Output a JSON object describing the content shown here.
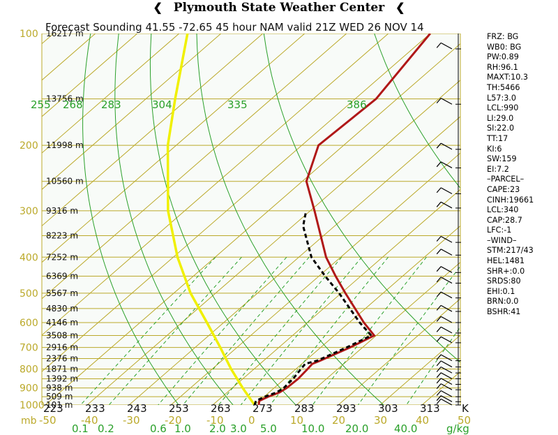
{
  "header": {
    "title": "Plymouth State Weather Center",
    "flag_icon": "flag-icon"
  },
  "chart_data": {
    "type": "skew-t sounding",
    "title": "Forecast Sounding 41.55 -72.65  45 hour NAM valid 21Z WED 26 NOV 14",
    "pressure_labels": [
      "100",
      "200",
      "300",
      "400",
      "500",
      "600",
      "700",
      "800",
      "900",
      "1000"
    ],
    "pressure_unit": "mb",
    "height_labels": [
      {
        "p": 100,
        "label": "16217 m"
      },
      {
        "p": 150,
        "label": "13756 m"
      },
      {
        "p": 200,
        "label": "11998 m"
      },
      {
        "p": 250,
        "label": "10560 m"
      },
      {
        "p": 300,
        "label": "9316 m"
      },
      {
        "p": 350,
        "label": "8223 m"
      },
      {
        "p": 400,
        "label": "7252 m"
      },
      {
        "p": 450,
        "label": "6369 m"
      },
      {
        "p": 500,
        "label": "5567 m"
      },
      {
        "p": 550,
        "label": "4830 m"
      },
      {
        "p": 600,
        "label": "4146 m"
      },
      {
        "p": 650,
        "label": "3508 m"
      },
      {
        "p": 700,
        "label": "2916 m"
      },
      {
        "p": 750,
        "label": "2376 m"
      },
      {
        "p": 800,
        "label": "1871 m"
      },
      {
        "p": 850,
        "label": "1392 m"
      },
      {
        "p": 900,
        "label": "938 m"
      },
      {
        "p": 950,
        "label": "509 m"
      },
      {
        "p": 1000,
        "label": "101 m"
      }
    ],
    "temp_c_labels": [
      "-50",
      "-40",
      "-30",
      "-20",
      "-10",
      "0",
      "10",
      "20",
      "30",
      "40",
      "50"
    ],
    "kelvin_labels": [
      "223",
      "233",
      "243",
      "253",
      "263",
      "273",
      "283",
      "293",
      "303",
      "313",
      "K"
    ],
    "mixing_ratio_labels": [
      "0.1",
      "0.2",
      "0.6",
      "1.0",
      "2.0",
      "3.0",
      "5.0",
      "10.0",
      "20.0",
      "40.0",
      "g/kg"
    ],
    "theta_labels": [
      "255",
      "268",
      "283",
      "304",
      "335",
      "386"
    ],
    "temperature_profile": [
      {
        "p": 1000,
        "t": 1.0
      },
      {
        "p": 975,
        "t": 0.0
      },
      {
        "p": 950,
        "t": 1.0
      },
      {
        "p": 925,
        "t": 2.5
      },
      {
        "p": 900,
        "t": 3.0
      },
      {
        "p": 850,
        "t": 3.2
      },
      {
        "p": 800,
        "t": 2.8
      },
      {
        "p": 775,
        "t": 2.5
      },
      {
        "p": 760,
        "t": 3.5
      },
      {
        "p": 700,
        "t": 7.0
      },
      {
        "p": 650,
        "t": 9.5
      },
      {
        "p": 600,
        "t": 3.5
      },
      {
        "p": 500,
        "t": -9.0
      },
      {
        "p": 450,
        "t": -16.0
      },
      {
        "p": 400,
        "t": -23.5
      },
      {
        "p": 300,
        "t": -39.0
      },
      {
        "p": 250,
        "t": -49.0
      },
      {
        "p": 200,
        "t": -56.0
      },
      {
        "p": 150,
        "t": -55.0
      },
      {
        "p": 100,
        "t": -60.0
      }
    ],
    "dewpoint_profile": [
      {
        "p": 1000,
        "t": 0.0
      },
      {
        "p": 975,
        "t": -0.8
      },
      {
        "p": 950,
        "t": 0.2
      },
      {
        "p": 925,
        "t": 1.8
      },
      {
        "p": 900,
        "t": 2.3
      },
      {
        "p": 850,
        "t": 2.0
      },
      {
        "p": 800,
        "t": 1.2
      },
      {
        "p": 775,
        "t": 0.8
      },
      {
        "p": 760,
        "t": 2.8
      },
      {
        "p": 700,
        "t": 6.2
      },
      {
        "p": 650,
        "t": 8.8
      },
      {
        "p": 600,
        "t": 2.5
      },
      {
        "p": 500,
        "t": -10.5
      },
      {
        "p": 450,
        "t": -18.5
      },
      {
        "p": 400,
        "t": -27.0
      },
      {
        "p": 330,
        "t": -37.5
      },
      {
        "p": 300,
        "t": -41.0
      }
    ],
    "parcel_profile": [
      {
        "p": 1000,
        "t": 0.0
      },
      {
        "p": 900,
        "t": -7.5
      },
      {
        "p": 800,
        "t": -15.5
      },
      {
        "p": 700,
        "t": -24.0
      },
      {
        "p": 600,
        "t": -34.0
      },
      {
        "p": 500,
        "t": -46.0
      },
      {
        "p": 400,
        "t": -59.0
      },
      {
        "p": 300,
        "t": -74.0
      },
      {
        "p": 200,
        "t": -92.0
      },
      {
        "p": 150,
        "t": -103.0
      },
      {
        "p": 100,
        "t": -118.0
      }
    ],
    "wind_barbs_p": [
      110,
      155,
      205,
      230,
      270,
      295,
      365,
      395,
      440,
      470,
      515,
      560,
      600,
      640,
      680,
      760,
      790,
      820,
      850,
      880,
      910,
      950,
      980,
      1000
    ],
    "grid": true,
    "colors": {
      "isobar": "#bba92a",
      "isotherm": "#bba92a",
      "dry_adiabat": "#2aa02a",
      "mixing_ratio": "#2aa02a",
      "temperature": "#b01818",
      "dewpoint": "#000000",
      "parcel": "#f0f000",
      "label_green": "#2aa02a",
      "label_yellow": "#bba92a"
    }
  },
  "indices": [
    "FRZ: BG",
    "WB0: BG",
    "PW:0.89",
    "RH:96.1",
    "MAXT:10.3",
    "TH:5466",
    "L57:3.0",
    "LCL:990",
    "LI:29.0",
    "SI:22.0",
    "TT:17",
    "KI:6",
    "SW:159",
    "EI:7.2",
    "–PARCEL–",
    "CAPE:23",
    "CINH:19661",
    "LCL:340",
    "CAP:28.7",
    "LFC:-1",
    "–WIND–",
    "STM:217/43",
    "HEL:1481",
    "SHR+:0.0",
    "SRDS:80",
    "EHI:0.1",
    "BRN:0.0",
    "BSHR:41"
  ]
}
